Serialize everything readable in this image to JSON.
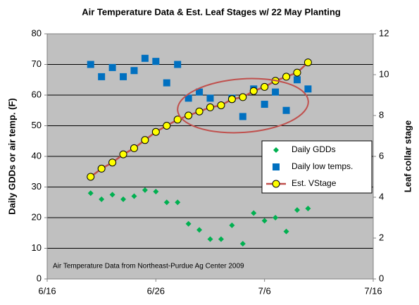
{
  "chart_data": {
    "type": "scatter",
    "title": "Air Temperature Data & Est. Leaf Stages w/ 22 May Planting",
    "y_label": "Daily GDDs or air temp. (F)",
    "y2_label": "Leaf collar stage",
    "annotation": "Air Temperature Data from Northeast-Purdue Ag Center 2009",
    "x": [
      171,
      172,
      173,
      174,
      175,
      176,
      177,
      178,
      179,
      180,
      181,
      182,
      183,
      184,
      185,
      186,
      187,
      188,
      189,
      190,
      191
    ],
    "xlim": [
      167,
      197
    ],
    "xticks": [
      {
        "value": 167,
        "label": "6/16"
      },
      {
        "value": 177,
        "label": "6/26"
      },
      {
        "value": 187,
        "label": "7/6"
      },
      {
        "value": 197,
        "label": "7/16"
      }
    ],
    "ylim": [
      0,
      80
    ],
    "yticks": [
      0,
      10,
      20,
      30,
      40,
      50,
      60,
      70,
      80
    ],
    "y2lim": [
      0,
      12
    ],
    "y2ticks": [
      0,
      2,
      4,
      6,
      8,
      10,
      12
    ],
    "grid": true,
    "legend": "lower right",
    "series": [
      {
        "name": "Daily GDDs",
        "color": "#00b050",
        "marker": "diamond",
        "values": [
          28,
          26,
          27.5,
          26,
          27,
          29,
          28.5,
          25,
          25,
          18,
          16,
          13,
          13,
          17.5,
          11.5,
          21.5,
          19,
          20,
          15.5,
          22.5,
          23
        ]
      },
      {
        "name": "Daily low temps.",
        "color": "#0070c0",
        "marker": "square",
        "values": [
          70,
          66,
          69,
          66,
          68,
          72,
          71,
          64,
          70,
          59,
          61,
          59,
          null,
          59,
          53,
          62,
          57,
          61,
          55,
          65,
          62
        ]
      },
      {
        "name": "Est. VStage",
        "color": "#ffff00",
        "line_color": "#c0504d",
        "marker": "circle",
        "axis": "y2",
        "values": [
          5.0,
          5.4,
          5.7,
          6.1,
          6.4,
          6.8,
          7.2,
          7.5,
          7.8,
          8.0,
          8.2,
          8.4,
          8.5,
          8.8,
          8.9,
          9.2,
          9.4,
          9.7,
          9.9,
          10.1,
          10.6
        ]
      }
    ]
  }
}
